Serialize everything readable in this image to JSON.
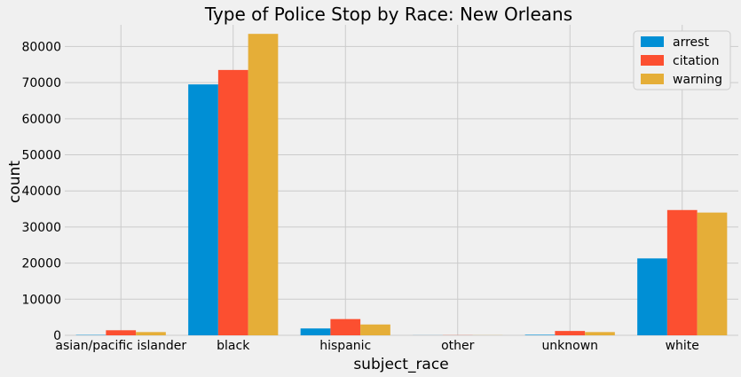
{
  "chart_data": {
    "type": "bar",
    "title": "Type of Police Stop by Race: New Orleans",
    "xlabel": "subject_race",
    "ylabel": "count",
    "ylim": [
      0,
      86000
    ],
    "yticks": [
      0,
      10000,
      20000,
      30000,
      40000,
      50000,
      60000,
      70000,
      80000
    ],
    "categories": [
      "asian/pacific islander",
      "black",
      "hispanic",
      "other",
      "unknown",
      "white"
    ],
    "series": [
      {
        "name": "arrest",
        "color": "#008fd5",
        "values": [
          100,
          69500,
          1900,
          20,
          150,
          21300
        ]
      },
      {
        "name": "citation",
        "color": "#fc4f30",
        "values": [
          1400,
          73500,
          4500,
          40,
          1200,
          34700
        ]
      },
      {
        "name": "warning",
        "color": "#e5ae38",
        "values": [
          900,
          83500,
          3000,
          30,
          900,
          34000
        ]
      }
    ],
    "grid": true,
    "legend_position": "top-right",
    "background": "#f0f0f0",
    "grid_color": "#cbcbcb"
  }
}
